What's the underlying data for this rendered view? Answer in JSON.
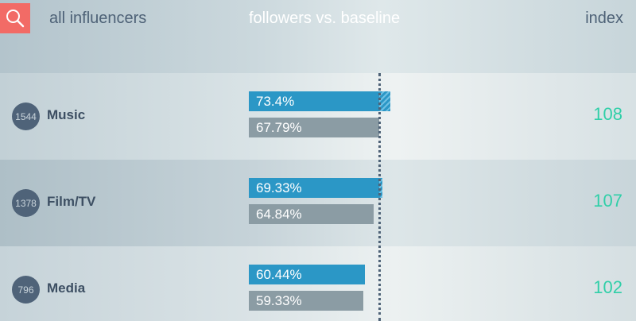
{
  "header": {
    "left_label": "all influencers",
    "center_label": "followers vs. baseline",
    "right_label": "index"
  },
  "icons": {
    "search": "search-icon"
  },
  "colors": {
    "search_button": "#f26b66",
    "primary_bar": "#2b97c6",
    "baseline_bar": "#8b9ca4",
    "index_text": "#30cfa8",
    "count_circle": "#4f6379"
  },
  "rows": [
    {
      "count": "1544",
      "label": "Music",
      "followers": "73.4%",
      "baseline": "67.79%",
      "index": "108",
      "followers_value": 73.4,
      "baseline_value": 67.79
    },
    {
      "count": "1378",
      "label": "Film/TV",
      "followers": "69.33%",
      "baseline": "64.84%",
      "index": "107",
      "followers_value": 69.33,
      "baseline_value": 64.84
    },
    {
      "count": "796",
      "label": "Media",
      "followers": "60.44%",
      "baseline": "59.33%",
      "index": "102",
      "followers_value": 60.44,
      "baseline_value": 59.33
    }
  ]
}
